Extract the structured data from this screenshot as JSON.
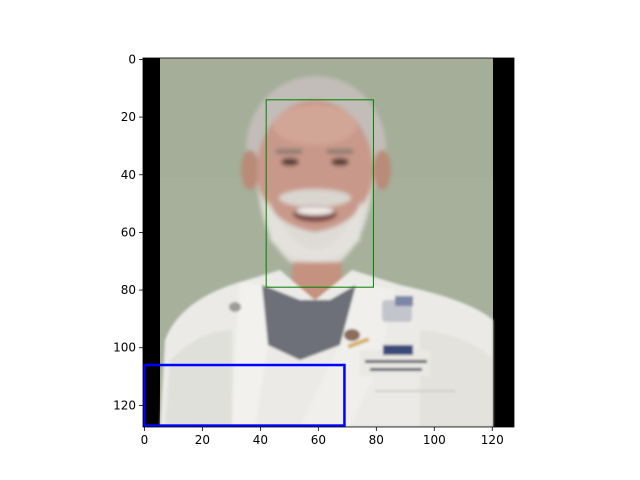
{
  "figure": {
    "image_description": "portrait photo of a smiling bearded man in a white lab coat",
    "axes": {
      "x": {
        "min": -0.5,
        "max": 127.5,
        "ticks": [
          0,
          20,
          40,
          60,
          80,
          100,
          120
        ],
        "tick_labels": [
          "0",
          "20",
          "40",
          "60",
          "80",
          "100",
          "120"
        ]
      },
      "y": {
        "min": -0.5,
        "max": 127.5,
        "inverted": true,
        "ticks": [
          0,
          20,
          40,
          60,
          80,
          100,
          120
        ],
        "tick_labels": [
          "0",
          "20",
          "40",
          "60",
          "80",
          "100",
          "120"
        ]
      }
    },
    "boxes": [
      {
        "name": "face-box",
        "color": "#008000",
        "x0": 42,
        "y0": 14,
        "x1": 79,
        "y1": 79,
        "stroke_width": 1
      },
      {
        "name": "detection-box",
        "color": "#0000ff",
        "x0": 0,
        "y0": 106,
        "x1": 69,
        "y1": 127,
        "stroke_width": 2.5
      }
    ],
    "colors": {
      "background_wall": "#a7b19c",
      "black_padding": "#000000",
      "coat": "#ecebe7",
      "scrubs": "#6e7178",
      "skin": "#c89a86",
      "hair": "#c8c4bf"
    }
  }
}
